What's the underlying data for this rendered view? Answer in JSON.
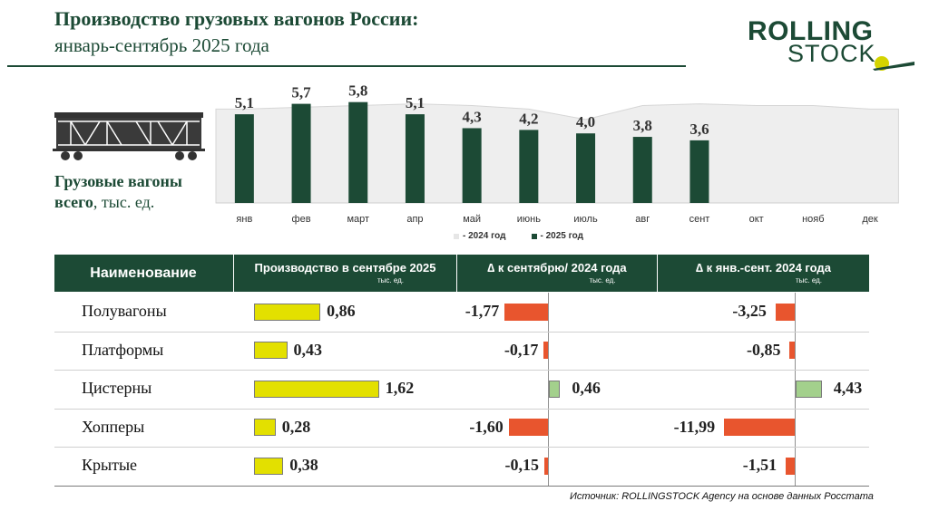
{
  "header": {
    "title": "Производство грузовых вагонов России:",
    "subtitle": "январь-сентябрь 2025 года"
  },
  "logo": {
    "top": "ROLLING",
    "bottom": "STOCK"
  },
  "left_panel": {
    "icon": "freight-wagon-icon",
    "label_bold": "Грузовые вагоны",
    "label2_bold": "всего",
    "label2_rest": ", тыс. ед."
  },
  "colors": {
    "brand_green": "#1c4a35",
    "bar_2025": "#1c4a35",
    "area_2024": "#eeeeee",
    "prod_bar": "#e3e000",
    "negative": "#e8552e",
    "positive": "#a3d08c"
  },
  "chart_data": {
    "type": "bar",
    "categories": [
      "янв",
      "фев",
      "март",
      "апр",
      "май",
      "июнь",
      "июль",
      "авг",
      "сент",
      "окт",
      "нояб",
      "дек"
    ],
    "series": [
      {
        "name": "- 2024 год",
        "type": "area",
        "values": [
          5.4,
          5.5,
          5.6,
          5.7,
          5.6,
          5.4,
          4.8,
          5.6,
          5.7,
          5.6,
          5.6,
          5.4
        ]
      },
      {
        "name": "- 2025 год",
        "type": "bar",
        "values": [
          5.1,
          5.7,
          5.8,
          5.1,
          4.3,
          4.2,
          4.0,
          3.8,
          3.6
        ]
      }
    ],
    "labels": [
      "5,1",
      "5,7",
      "5,8",
      "5,1",
      "4,3",
      "4,2",
      "4,0",
      "3,8",
      "3,6"
    ],
    "ylim": [
      0,
      6.2
    ],
    "legend_position": "bottom"
  },
  "table": {
    "headers": {
      "name": "Наименование",
      "prod": "Производство в сентябре 2025",
      "prod_unit": "тыс. ед.",
      "delta_sep": "∆    к сентябрю/ 2024 года",
      "delta_sep_unit": "тыс. ед.",
      "delta_ytd": "∆ к янв.-сент. 2024 года",
      "delta_ytd_unit": "тыс. ед."
    },
    "rows": [
      {
        "name": "Полувагоны",
        "prod": 0.86,
        "prod_label": "0,86",
        "dsep": -1.77,
        "dsep_label": "-1,77",
        "dytd": -3.25,
        "dytd_label": "-3,25"
      },
      {
        "name": "Платформы",
        "prod": 0.43,
        "prod_label": "0,43",
        "dsep": -0.17,
        "dsep_label": "-0,17",
        "dytd": -0.85,
        "dytd_label": "-0,85"
      },
      {
        "name": "Цистерны",
        "prod": 1.62,
        "prod_label": "1,62",
        "dsep": 0.46,
        "dsep_label": "0,46",
        "dytd": 4.43,
        "dytd_label": "4,43"
      },
      {
        "name": "Хопперы",
        "prod": 0.28,
        "prod_label": "0,28",
        "dsep": -1.6,
        "dsep_label": "-1,60",
        "dytd": -11.99,
        "dytd_label": "-11,99"
      },
      {
        "name": "Крытые",
        "prod": 0.38,
        "prod_label": "0,38",
        "dsep": -0.15,
        "dsep_label": "-0,15",
        "dytd": -1.51,
        "dytd_label": "-1,51"
      }
    ]
  },
  "source": "Источник: ROLLINGSTOCK Agency на основе данных Росстата"
}
